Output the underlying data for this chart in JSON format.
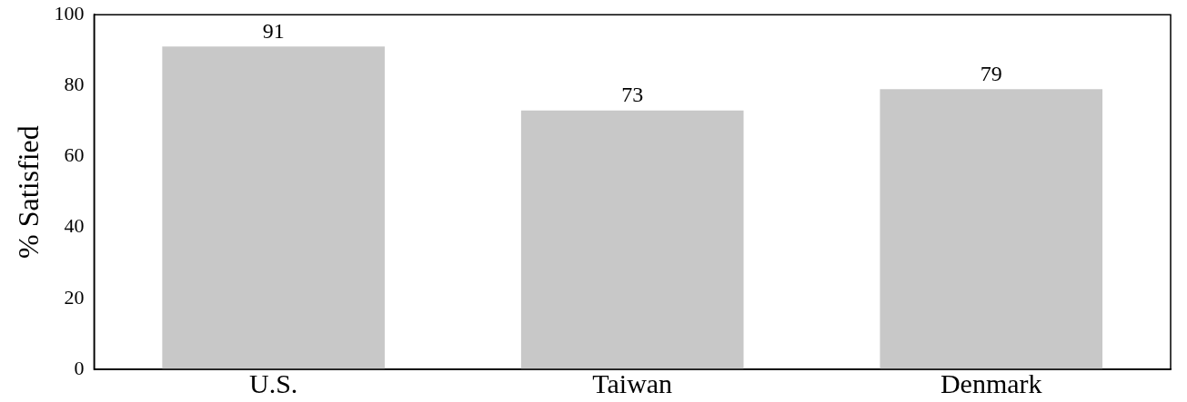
{
  "chart_data": {
    "type": "bar",
    "ylabel": "% Satisfied",
    "categories": [
      "U.S.",
      "Taiwan",
      "Denmark"
    ],
    "values": [
      91,
      73,
      79
    ],
    "color": "#c8c8c8",
    "ylim": [
      0,
      100
    ],
    "yticks": [
      0,
      20,
      40,
      60,
      80,
      100
    ],
    "grid": false,
    "legend": false,
    "data_labels": true
  }
}
